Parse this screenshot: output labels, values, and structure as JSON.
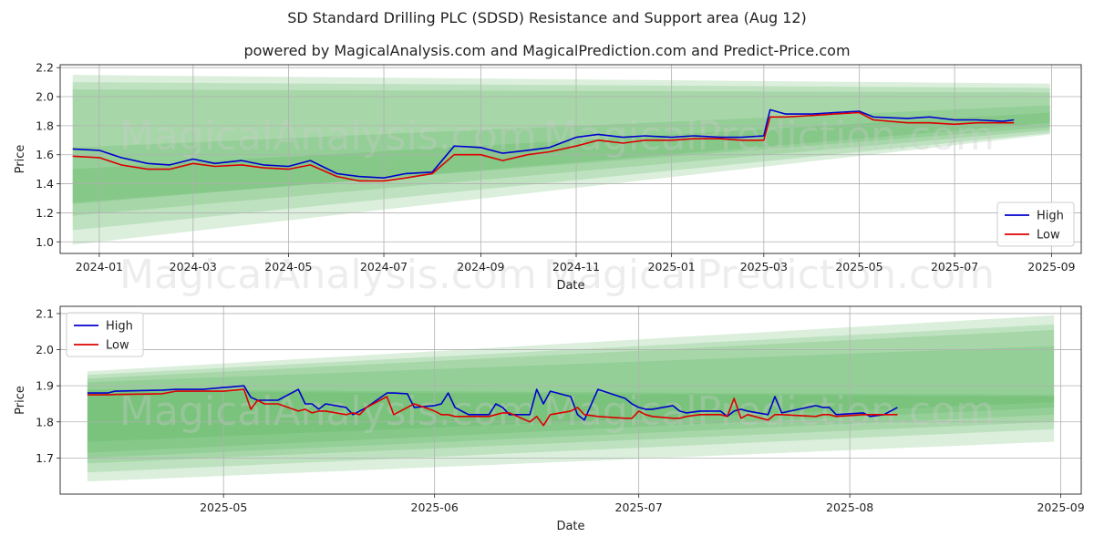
{
  "title": "SD Standard Drilling PLC (SDSD) Resistance and Support area (Aug 12)",
  "subtitle": "powered by MagicalAnalysis.com and MagicalPrediction.com and Predict-Price.com",
  "watermarks": [
    "MagicalAnalysis.com",
    "MagicalPrediction.com"
  ],
  "colors": {
    "high": "#0000cc",
    "low": "#dd0000",
    "band": "#4caf50",
    "grid": "#b0b0b0"
  },
  "chart_data": [
    {
      "type": "line",
      "xlabel": "Date",
      "ylabel": "Price",
      "x_ticks": [
        "2024-01",
        "2024-03",
        "2024-05",
        "2024-07",
        "2024-09",
        "2024-11",
        "2025-01",
        "2025-03",
        "2025-05",
        "2025-07",
        "2025-09"
      ],
      "y_ticks": [
        "1.0",
        "1.2",
        "1.4",
        "1.6",
        "1.8",
        "2.0",
        "2.2"
      ],
      "xlim": [
        "2023-12-07",
        "2025-09-20"
      ],
      "ylim": [
        0.92,
        2.22
      ],
      "grid": true,
      "legend_position": "bottom-right",
      "legend": [
        "High",
        "Low"
      ],
      "bands": [
        {
          "x": [
            "2023-12-15",
            "2025-08-31"
          ],
          "upper": [
            2.15,
            2.09
          ],
          "lower": [
            0.98,
            1.74
          ]
        },
        {
          "x": [
            "2023-12-15",
            "2025-08-31"
          ],
          "upper": [
            2.1,
            2.06
          ],
          "lower": [
            1.08,
            1.75
          ]
        },
        {
          "x": [
            "2023-12-15",
            "2025-08-31"
          ],
          "upper": [
            2.05,
            2.03
          ],
          "lower": [
            1.18,
            1.77
          ]
        },
        {
          "x": [
            "2023-12-15",
            "2025-08-31"
          ],
          "upper": [
            1.65,
            1.94
          ],
          "lower": [
            1.27,
            1.79
          ]
        },
        {
          "x": [
            "2023-12-15",
            "2025-08-31"
          ],
          "upper": [
            1.5,
            1.89
          ],
          "lower": [
            1.26,
            1.82
          ]
        }
      ],
      "series": [
        {
          "name": "High",
          "x": [
            "2023-12-15",
            "2024-01-01",
            "2024-01-15",
            "2024-02-01",
            "2024-02-15",
            "2024-03-01",
            "2024-03-15",
            "2024-04-01",
            "2024-04-15",
            "2024-05-01",
            "2024-05-15",
            "2024-06-01",
            "2024-06-15",
            "2024-07-01",
            "2024-07-15",
            "2024-08-01",
            "2024-08-15",
            "2024-09-01",
            "2024-09-15",
            "2024-10-01",
            "2024-10-15",
            "2024-11-01",
            "2024-11-15",
            "2024-12-01",
            "2024-12-15",
            "2025-01-01",
            "2025-01-15",
            "2025-02-01",
            "2025-02-15",
            "2025-03-01",
            "2025-03-05",
            "2025-03-15",
            "2025-04-01",
            "2025-04-15",
            "2025-05-01",
            "2025-05-10",
            "2025-06-01",
            "2025-06-15",
            "2025-07-01",
            "2025-07-15",
            "2025-08-01",
            "2025-08-08"
          ],
          "values": [
            1.64,
            1.63,
            1.58,
            1.54,
            1.53,
            1.57,
            1.54,
            1.56,
            1.53,
            1.52,
            1.56,
            1.47,
            1.45,
            1.44,
            1.47,
            1.48,
            1.66,
            1.65,
            1.61,
            1.63,
            1.65,
            1.72,
            1.74,
            1.72,
            1.73,
            1.72,
            1.73,
            1.72,
            1.72,
            1.73,
            1.91,
            1.88,
            1.88,
            1.89,
            1.9,
            1.86,
            1.85,
            1.86,
            1.84,
            1.84,
            1.83,
            1.84
          ]
        },
        {
          "name": "Low",
          "x": [
            "2023-12-15",
            "2024-01-01",
            "2024-01-15",
            "2024-02-01",
            "2024-02-15",
            "2024-03-01",
            "2024-03-15",
            "2024-04-01",
            "2024-04-15",
            "2024-05-01",
            "2024-05-15",
            "2024-06-01",
            "2024-06-15",
            "2024-07-01",
            "2024-07-15",
            "2024-08-01",
            "2024-08-15",
            "2024-09-01",
            "2024-09-15",
            "2024-10-01",
            "2024-10-15",
            "2024-11-01",
            "2024-11-15",
            "2024-12-01",
            "2024-12-15",
            "2025-01-01",
            "2025-01-15",
            "2025-02-01",
            "2025-02-15",
            "2025-03-01",
            "2025-03-05",
            "2025-03-15",
            "2025-04-01",
            "2025-04-15",
            "2025-05-01",
            "2025-05-10",
            "2025-06-01",
            "2025-06-15",
            "2025-07-01",
            "2025-07-15",
            "2025-08-01",
            "2025-08-08"
          ],
          "values": [
            1.59,
            1.58,
            1.53,
            1.5,
            1.5,
            1.54,
            1.52,
            1.53,
            1.51,
            1.5,
            1.53,
            1.45,
            1.42,
            1.42,
            1.44,
            1.47,
            1.6,
            1.6,
            1.56,
            1.6,
            1.62,
            1.66,
            1.7,
            1.68,
            1.7,
            1.7,
            1.71,
            1.71,
            1.7,
            1.7,
            1.86,
            1.86,
            1.87,
            1.88,
            1.89,
            1.84,
            1.82,
            1.82,
            1.81,
            1.82,
            1.82,
            1.82
          ]
        }
      ]
    },
    {
      "type": "line",
      "xlabel": "Date",
      "ylabel": "Price",
      "x_ticks": [
        "2025-05",
        "2025-06",
        "2025-07",
        "2025-08",
        "2025-09"
      ],
      "y_ticks": [
        "1.7",
        "1.8",
        "1.9",
        "2.0",
        "2.1"
      ],
      "xlim": [
        "2025-04-07",
        "2025-09-04"
      ],
      "ylim": [
        1.6,
        2.12
      ],
      "grid": true,
      "legend_position": "top-left",
      "legend": [
        "High",
        "Low"
      ],
      "bands": [
        {
          "x": [
            "2025-04-11",
            "2025-08-31"
          ],
          "upper": [
            1.94,
            2.095
          ],
          "lower": [
            1.635,
            1.745
          ]
        },
        {
          "x": [
            "2025-04-11",
            "2025-08-31"
          ],
          "upper": [
            1.93,
            2.07
          ],
          "lower": [
            1.66,
            1.78
          ]
        },
        {
          "x": [
            "2025-04-11",
            "2025-08-31"
          ],
          "upper": [
            1.92,
            2.055
          ],
          "lower": [
            1.685,
            1.8
          ]
        },
        {
          "x": [
            "2025-04-11",
            "2025-08-31"
          ],
          "upper": [
            1.91,
            2.01
          ],
          "lower": [
            1.7,
            1.82
          ]
        },
        {
          "x": [
            "2025-04-11",
            "2025-08-31"
          ],
          "upper": [
            1.89,
            1.875
          ],
          "lower": [
            1.715,
            1.84
          ]
        },
        {
          "x": [
            "2025-04-11",
            "2025-08-31"
          ],
          "upper": [
            1.885,
            1.87
          ],
          "lower": [
            1.745,
            1.855
          ]
        }
      ],
      "series": [
        {
          "name": "High",
          "x": [
            "2025-04-11",
            "2025-04-14",
            "2025-04-15",
            "2025-04-22",
            "2025-04-24",
            "2025-04-28",
            "2025-05-01",
            "2025-05-04",
            "2025-05-05",
            "2025-05-06",
            "2025-05-07",
            "2025-05-09",
            "2025-05-12",
            "2025-05-13",
            "2025-05-14",
            "2025-05-15",
            "2025-05-16",
            "2025-05-19",
            "2025-05-20",
            "2025-05-21",
            "2025-05-22",
            "2025-05-25",
            "2025-05-26",
            "2025-05-28",
            "2025-05-29",
            "2025-06-01",
            "2025-06-02",
            "2025-06-03",
            "2025-06-04",
            "2025-06-05",
            "2025-06-06",
            "2025-06-09",
            "2025-06-10",
            "2025-06-11",
            "2025-06-12",
            "2025-06-15",
            "2025-06-16",
            "2025-06-17",
            "2025-06-18",
            "2025-06-21",
            "2025-06-22",
            "2025-06-23",
            "2025-06-25",
            "2025-06-29",
            "2025-06-30",
            "2025-07-01",
            "2025-07-02",
            "2025-07-03",
            "2025-07-06",
            "2025-07-07",
            "2025-07-08",
            "2025-07-10",
            "2025-07-13",
            "2025-07-14",
            "2025-07-15",
            "2025-07-16",
            "2025-07-17",
            "2025-07-20",
            "2025-07-21",
            "2025-07-22",
            "2025-07-27",
            "2025-07-28",
            "2025-07-29",
            "2025-07-30",
            "2025-08-03",
            "2025-08-04",
            "2025-08-06",
            "2025-08-07",
            "2025-08-08"
          ],
          "values": [
            1.88,
            1.88,
            1.885,
            1.888,
            1.89,
            1.89,
            1.895,
            1.9,
            1.868,
            1.86,
            1.86,
            1.86,
            1.89,
            1.85,
            1.85,
            1.835,
            1.85,
            1.84,
            1.82,
            1.83,
            1.84,
            1.88,
            1.88,
            1.878,
            1.84,
            1.845,
            1.85,
            1.88,
            1.84,
            1.83,
            1.82,
            1.82,
            1.85,
            1.84,
            1.82,
            1.82,
            1.89,
            1.85,
            1.885,
            1.87,
            1.82,
            1.805,
            1.89,
            1.865,
            1.85,
            1.84,
            1.835,
            1.835,
            1.845,
            1.83,
            1.825,
            1.83,
            1.83,
            1.815,
            1.83,
            1.835,
            1.83,
            1.82,
            1.87,
            1.825,
            1.845,
            1.84,
            1.84,
            1.82,
            1.825,
            1.815,
            1.82,
            1.83,
            1.84
          ]
        },
        {
          "name": "Low",
          "x": [
            "2025-04-11",
            "2025-04-14",
            "2025-04-15",
            "2025-04-22",
            "2025-04-24",
            "2025-04-28",
            "2025-05-01",
            "2025-05-04",
            "2025-05-05",
            "2025-05-06",
            "2025-05-07",
            "2025-05-09",
            "2025-05-12",
            "2025-05-13",
            "2025-05-14",
            "2025-05-15",
            "2025-05-16",
            "2025-05-19",
            "2025-05-20",
            "2025-05-21",
            "2025-05-22",
            "2025-05-25",
            "2025-05-26",
            "2025-05-28",
            "2025-05-29",
            "2025-06-01",
            "2025-06-02",
            "2025-06-03",
            "2025-06-04",
            "2025-06-05",
            "2025-06-06",
            "2025-06-09",
            "2025-06-10",
            "2025-06-11",
            "2025-06-12",
            "2025-06-15",
            "2025-06-16",
            "2025-06-17",
            "2025-06-18",
            "2025-06-21",
            "2025-06-22",
            "2025-06-23",
            "2025-06-25",
            "2025-06-29",
            "2025-06-30",
            "2025-07-01",
            "2025-07-02",
            "2025-07-03",
            "2025-07-06",
            "2025-07-07",
            "2025-07-08",
            "2025-07-10",
            "2025-07-13",
            "2025-07-14",
            "2025-07-15",
            "2025-07-16",
            "2025-07-17",
            "2025-07-20",
            "2025-07-21",
            "2025-07-22",
            "2025-07-27",
            "2025-07-28",
            "2025-07-29",
            "2025-07-30",
            "2025-08-03",
            "2025-08-04",
            "2025-08-06",
            "2025-08-07",
            "2025-08-08"
          ],
          "values": [
            1.875,
            1.875,
            1.876,
            1.878,
            1.885,
            1.885,
            1.885,
            1.89,
            1.835,
            1.86,
            1.85,
            1.85,
            1.83,
            1.835,
            1.825,
            1.83,
            1.83,
            1.82,
            1.825,
            1.82,
            1.84,
            1.87,
            1.82,
            1.84,
            1.85,
            1.83,
            1.82,
            1.82,
            1.815,
            1.815,
            1.815,
            1.815,
            1.82,
            1.825,
            1.825,
            1.8,
            1.815,
            1.79,
            1.82,
            1.83,
            1.84,
            1.82,
            1.815,
            1.81,
            1.81,
            1.83,
            1.82,
            1.815,
            1.81,
            1.81,
            1.815,
            1.82,
            1.82,
            1.815,
            1.865,
            1.81,
            1.82,
            1.805,
            1.82,
            1.82,
            1.815,
            1.82,
            1.82,
            1.815,
            1.82,
            1.82,
            1.82,
            1.82,
            1.82
          ]
        }
      ]
    }
  ]
}
